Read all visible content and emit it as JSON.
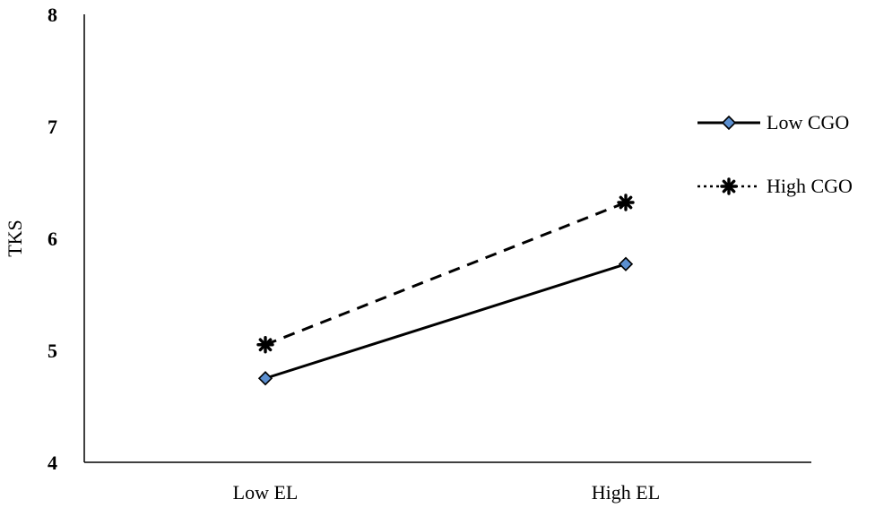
{
  "chart_data": {
    "type": "line",
    "title": "",
    "xlabel": "",
    "ylabel": "TKS",
    "categories": [
      "Low EL",
      "High EL"
    ],
    "ylim": [
      4,
      8
    ],
    "yticks": [
      4,
      5,
      6,
      7,
      8
    ],
    "grid": false,
    "legend_position": "right",
    "series": [
      {
        "name": "Low CGO",
        "values": [
          4.75,
          5.77
        ],
        "line_style": "solid",
        "marker": "diamond",
        "line_color": "#000000",
        "marker_fill": "#5b8fd0"
      },
      {
        "name": "High CGO",
        "values": [
          5.05,
          6.32
        ],
        "line_style": "dashed",
        "marker": "asterisk",
        "line_color": "#000000",
        "marker_fill": "#000000"
      }
    ]
  }
}
